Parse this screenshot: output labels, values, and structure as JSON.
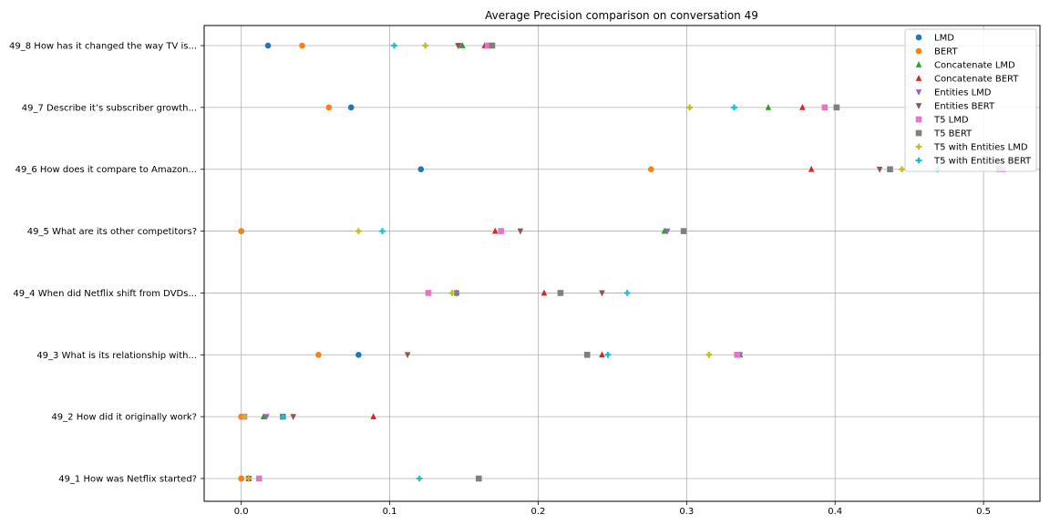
{
  "chart_data": {
    "type": "scatter",
    "title": "Average Precision comparison on conversation 49",
    "xlabel": "",
    "ylabel": "",
    "xlim": [
      -0.025,
      0.538
    ],
    "xticks": [
      0.0,
      0.1,
      0.2,
      0.3,
      0.4,
      0.5
    ],
    "xtick_labels": [
      "0.0",
      "0.1",
      "0.2",
      "0.3",
      "0.4",
      "0.5"
    ],
    "grid": true,
    "legend_position": "top-right",
    "categories": [
      "49_1 How was Netflix started?",
      "49_2 How did it originally work?",
      "49_3 What is its relationship with...",
      "49_4 When did Netflix shift from DVDs...",
      "49_5 What are its other competitors?",
      "49_6 How does it compare to Amazon...",
      "49_7 Describe it’s subscriber growth...",
      "49_8 How has it changed the way TV is..."
    ],
    "series": [
      {
        "name": "LMD",
        "marker": "circle",
        "color": "#1f77b4",
        "values": [
          0.0,
          0.0,
          0.079,
          0.145,
          0.0,
          0.121,
          0.074,
          0.018
        ]
      },
      {
        "name": "BERT",
        "marker": "circle",
        "color": "#ff7f0e",
        "values": [
          0.0,
          0.0,
          0.052,
          0.145,
          0.0,
          0.276,
          0.059,
          0.041
        ]
      },
      {
        "name": "Concatenate LMD",
        "marker": "triangle-up",
        "color": "#2ca02c",
        "values": [
          0.005,
          0.015,
          0.336,
          0.145,
          0.285,
          0.51,
          0.355,
          0.149
        ]
      },
      {
        "name": "Concatenate BERT",
        "marker": "triangle-up",
        "color": "#d62728",
        "values": [
          0.005,
          0.089,
          0.243,
          0.204,
          0.171,
          0.384,
          0.378,
          0.164
        ]
      },
      {
        "name": "Entities LMD",
        "marker": "triangle-down",
        "color": "#9467bd",
        "values": [
          0.005,
          0.017,
          0.336,
          0.145,
          0.287,
          0.51,
          0.393,
          0.147
        ]
      },
      {
        "name": "Entities BERT",
        "marker": "triangle-down",
        "color": "#8c564b",
        "values": [
          0.005,
          0.035,
          0.112,
          0.243,
          0.188,
          0.43,
          0.393,
          0.146
        ]
      },
      {
        "name": "T5 LMD",
        "marker": "square",
        "color": "#e377c2",
        "values": [
          0.012,
          0.002,
          0.334,
          0.126,
          0.175,
          0.513,
          0.393,
          0.166
        ]
      },
      {
        "name": "T5 BERT",
        "marker": "square",
        "color": "#7f7f7f",
        "values": [
          0.16,
          0.028,
          0.233,
          0.215,
          0.298,
          0.437,
          0.401,
          0.169
        ]
      },
      {
        "name": "T5 with Entities LMD",
        "marker": "plus",
        "color": "#bcbd22",
        "values": [
          0.005,
          0.002,
          0.315,
          0.142,
          0.079,
          0.445,
          0.302,
          0.124
        ]
      },
      {
        "name": "T5 with Entities BERT",
        "marker": "plus",
        "color": "#17becf",
        "values": [
          0.12,
          0.028,
          0.247,
          0.26,
          0.095,
          0.469,
          0.332,
          0.103
        ]
      }
    ]
  }
}
